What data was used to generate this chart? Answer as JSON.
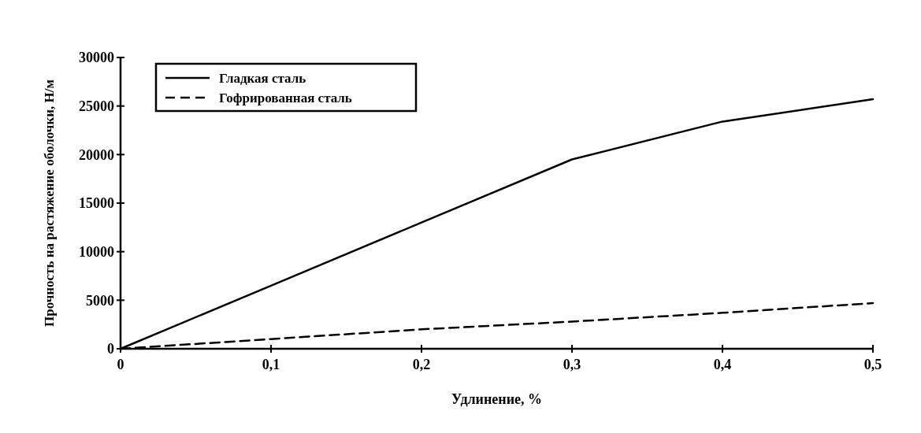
{
  "chart_data": {
    "type": "line",
    "xlabel": "Удлинение, %",
    "ylabel": "Прочность на растяжение оболочки, Н/м",
    "x": [
      0,
      0.1,
      0.2,
      0.3,
      0.4,
      0.5
    ],
    "series": [
      {
        "name": "Гладкая сталь",
        "color": "#000000",
        "line_style": "solid",
        "values": [
          0,
          6500,
          13000,
          19500,
          23400,
          25700
        ]
      },
      {
        "name": "Гофрированная сталь",
        "color": "#000000",
        "line_style": "dashed",
        "values": [
          0,
          1000,
          2000,
          2800,
          3700,
          4700
        ]
      }
    ],
    "xlim": [
      0,
      0.5
    ],
    "xticks": [
      0,
      {
        "value": 0.1,
        "label": "0,1"
      },
      {
        "value": 0.2,
        "label": "0,2"
      },
      {
        "value": 0.3,
        "label": "0,3"
      },
      {
        "value": 0.4,
        "label": "0,4"
      },
      {
        "value": 0.5,
        "label": "0,5"
      }
    ],
    "ylim": [
      0,
      30000
    ],
    "yticks": [
      0,
      5000,
      10000,
      15000,
      20000,
      25000,
      30000
    ],
    "grid": false,
    "legend": "top left",
    "marker": "none"
  }
}
